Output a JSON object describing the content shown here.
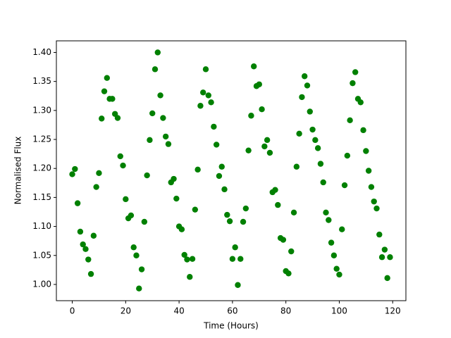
{
  "chart_data": {
    "type": "scatter",
    "xlabel": "Time (Hours)",
    "ylabel": "Normalised Flux",
    "color": "#008000",
    "x": [
      0,
      1,
      2,
      3,
      4,
      5,
      6,
      7,
      8,
      9,
      10,
      11,
      12,
      13,
      14,
      15,
      16,
      17,
      18,
      19,
      20,
      21,
      22,
      23,
      24,
      25,
      26,
      27,
      28,
      29,
      30,
      31,
      32,
      33,
      34,
      35,
      36,
      37,
      38,
      39,
      40,
      41,
      42,
      43,
      44,
      45,
      46,
      47,
      48,
      49,
      50,
      51,
      52,
      53,
      54,
      55,
      56,
      57,
      58,
      59,
      60,
      61,
      62,
      63,
      64,
      65,
      66,
      67,
      68,
      69,
      70,
      71,
      72,
      73,
      74,
      75,
      76,
      77,
      78,
      79,
      80,
      81,
      82,
      83,
      84,
      85,
      86,
      87,
      88,
      89,
      90,
      91,
      92,
      93,
      94,
      95,
      96,
      97,
      98,
      99,
      100,
      101,
      102,
      103,
      104,
      105,
      106,
      107,
      108,
      109,
      110,
      111,
      112,
      113,
      114,
      115,
      116,
      117,
      118,
      119
    ],
    "values": [
      1.19,
      1.199,
      1.14,
      1.091,
      1.069,
      1.061,
      1.043,
      1.018,
      1.084,
      1.168,
      1.192,
      1.286,
      1.333,
      1.356,
      1.32,
      1.32,
      1.294,
      1.287,
      1.221,
      1.205,
      1.147,
      1.114,
      1.119,
      1.064,
      1.05,
      0.993,
      1.026,
      1.108,
      1.188,
      1.249,
      1.295,
      1.371,
      1.4,
      1.326,
      1.287,
      1.255,
      1.242,
      1.176,
      1.182,
      1.148,
      1.1,
      1.095,
      1.051,
      1.043,
      1.013,
      1.044,
      1.129,
      1.198,
      1.308,
      1.331,
      1.371,
      1.326,
      1.314,
      1.272,
      1.241,
      1.187,
      1.203,
      1.164,
      1.12,
      1.109,
      1.044,
      1.064,
      0.999,
      1.044,
      1.108,
      1.131,
      1.231,
      1.291,
      1.376,
      1.342,
      1.345,
      1.302,
      1.238,
      1.249,
      1.227,
      1.159,
      1.163,
      1.137,
      1.08,
      1.077,
      1.023,
      1.019,
      1.057,
      1.124,
      1.203,
      1.26,
      1.323,
      1.359,
      1.343,
      1.298,
      1.267,
      1.249,
      1.235,
      1.208,
      1.176,
      1.124,
      1.111,
      1.072,
      1.05,
      1.027,
      1.017,
      1.095,
      1.171,
      1.222,
      1.283,
      1.347,
      1.366,
      1.32,
      1.314,
      1.266,
      1.23,
      1.196,
      1.168,
      1.143,
      1.131,
      1.086,
      1.047,
      1.06,
      1.011,
      1.047
    ],
    "xlim": [
      -5.95,
      124.95
    ],
    "ylim": [
      0.972,
      1.42
    ],
    "xticks": [
      0,
      20,
      40,
      60,
      80,
      100,
      120
    ],
    "yticks": [
      {
        "value": 1.0,
        "label": "1.00"
      },
      {
        "value": 1.05,
        "label": "1.05"
      },
      {
        "value": 1.1,
        "label": "1.10"
      },
      {
        "value": 1.15,
        "label": "1.15"
      },
      {
        "value": 1.2,
        "label": "1.20"
      },
      {
        "value": 1.25,
        "label": "1.25"
      },
      {
        "value": 1.3,
        "label": "1.30"
      },
      {
        "value": 1.35,
        "label": "1.35"
      },
      {
        "value": 1.4,
        "label": "1.40"
      }
    ]
  }
}
